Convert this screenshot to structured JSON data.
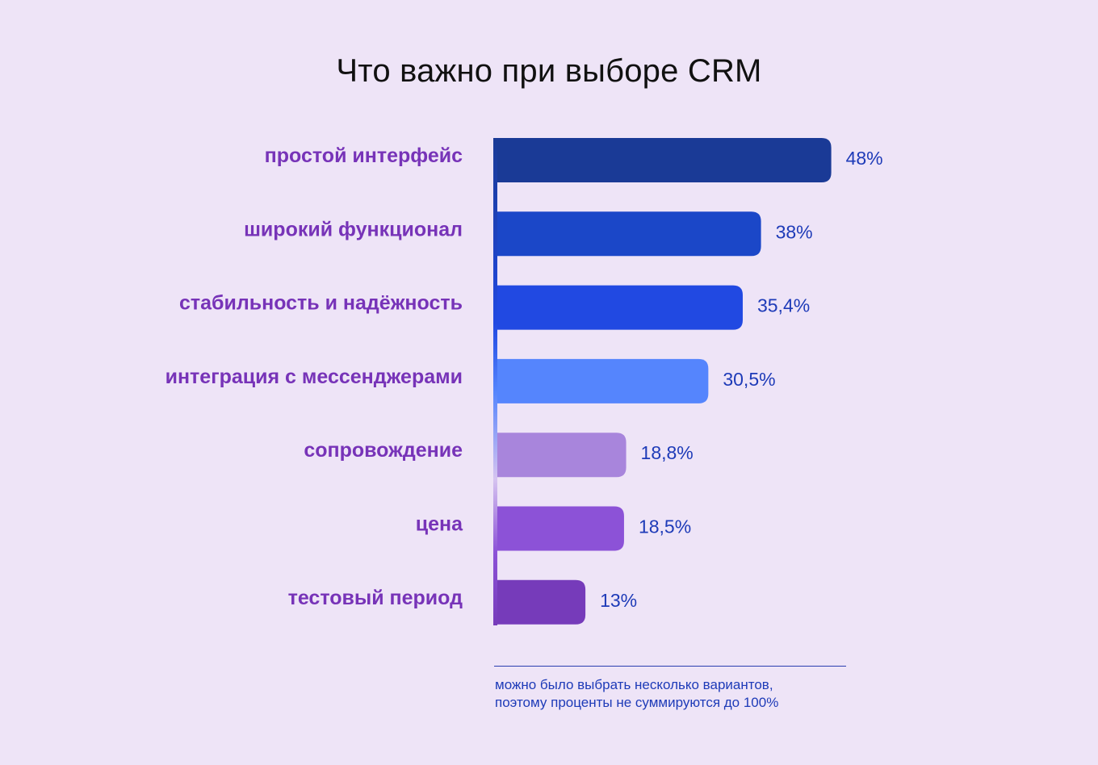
{
  "chart_data": {
    "type": "bar",
    "orientation": "horizontal",
    "title": "Что важно при выборе CRM",
    "categories": [
      "простой интерфейс",
      "широкий функционал",
      "стабильность и надёжность",
      "интеграция с мессенджерами",
      "сопровождение",
      "цена",
      "тестовый период"
    ],
    "values": [
      48,
      38,
      35.4,
      30.5,
      18.8,
      18.5,
      13
    ],
    "value_labels": [
      "48%",
      "38%",
      "35,4%",
      "30,5%",
      "18,8%",
      "18,5%",
      "13%"
    ],
    "bar_colors": [
      "#1A3A96",
      "#1B47C8",
      "#2149E2",
      "#5585FD",
      "#A885DC",
      "#8C52D7",
      "#763BBA"
    ],
    "grid": false,
    "legend": "none"
  },
  "footnote": {
    "line1": "можно было выбрать несколько вариантов,",
    "line2": "поэтому проценты не суммируются до 100%"
  },
  "colors": {
    "background": "#EEE4F7",
    "category_label": "#7733B8",
    "value_label": "#1E3BB8",
    "title": "#111111"
  }
}
